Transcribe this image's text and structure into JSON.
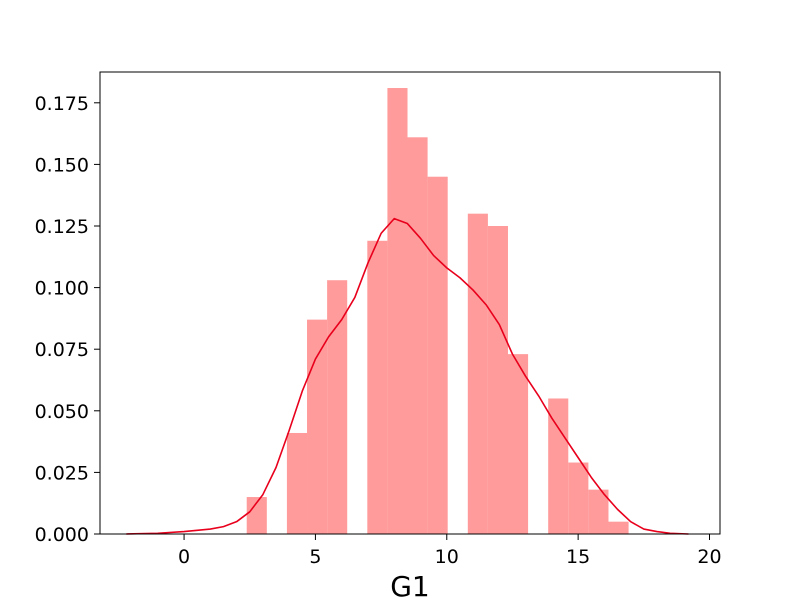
{
  "chart_data": {
    "type": "bar",
    "variant": "histogram-with-kde",
    "title": "",
    "xlabel": "G1",
    "ylabel": "",
    "xlim": [
      -3.2,
      20.4
    ],
    "ylim": [
      0,
      0.1875
    ],
    "xticks": [
      0,
      5,
      10,
      15,
      20
    ],
    "yticks": [
      0.0,
      0.025,
      0.05,
      0.075,
      0.1,
      0.125,
      0.15,
      0.175
    ],
    "ytick_labels": [
      "0.000",
      "0.025",
      "0.050",
      "0.075",
      "0.100",
      "0.125",
      "0.150",
      "0.175"
    ],
    "grid": false,
    "bars": [
      {
        "x0": 2.385,
        "x1": 3.15,
        "value": 0.015
      },
      {
        "x0": 3.915,
        "x1": 4.68,
        "value": 0.041
      },
      {
        "x0": 4.68,
        "x1": 5.445,
        "value": 0.087
      },
      {
        "x0": 5.445,
        "x1": 6.21,
        "value": 0.103
      },
      {
        "x0": 6.975,
        "x1": 7.74,
        "value": 0.119
      },
      {
        "x0": 7.74,
        "x1": 8.505,
        "value": 0.181
      },
      {
        "x0": 8.505,
        "x1": 9.27,
        "value": 0.161
      },
      {
        "x0": 9.27,
        "x1": 10.035,
        "value": 0.145
      },
      {
        "x0": 10.8,
        "x1": 11.565,
        "value": 0.13
      },
      {
        "x0": 11.565,
        "x1": 12.33,
        "value": 0.125
      },
      {
        "x0": 12.33,
        "x1": 13.095,
        "value": 0.073
      },
      {
        "x0": 13.86,
        "x1": 14.625,
        "value": 0.055
      },
      {
        "x0": 14.625,
        "x1": 15.39,
        "value": 0.029
      },
      {
        "x0": 15.39,
        "x1": 16.155,
        "value": 0.018
      },
      {
        "x0": 16.155,
        "x1": 16.92,
        "value": 0.005
      }
    ],
    "kde": {
      "x": [
        -2.2,
        -1,
        0,
        0.5,
        1,
        1.5,
        2,
        2.5,
        3,
        3.5,
        4,
        4.5,
        5,
        5.5,
        6,
        6.5,
        7,
        7.5,
        8,
        8.5,
        9,
        9.5,
        10,
        10.5,
        11,
        11.5,
        12,
        12.5,
        13,
        13.5,
        14,
        14.5,
        15,
        15.5,
        16,
        16.5,
        17,
        17.5,
        18,
        18.5,
        19.2
      ],
      "y": [
        0.0,
        0.0003,
        0.001,
        0.0015,
        0.002,
        0.003,
        0.005,
        0.009,
        0.016,
        0.027,
        0.042,
        0.058,
        0.071,
        0.08,
        0.087,
        0.096,
        0.11,
        0.122,
        0.128,
        0.126,
        0.12,
        0.113,
        0.108,
        0.104,
        0.099,
        0.093,
        0.085,
        0.073,
        0.064,
        0.056,
        0.047,
        0.039,
        0.031,
        0.023,
        0.016,
        0.01,
        0.005,
        0.002,
        0.001,
        0.0003,
        0.0
      ]
    },
    "colors": {
      "bar": "#ff9b9b",
      "kde": "#e8001c"
    }
  }
}
